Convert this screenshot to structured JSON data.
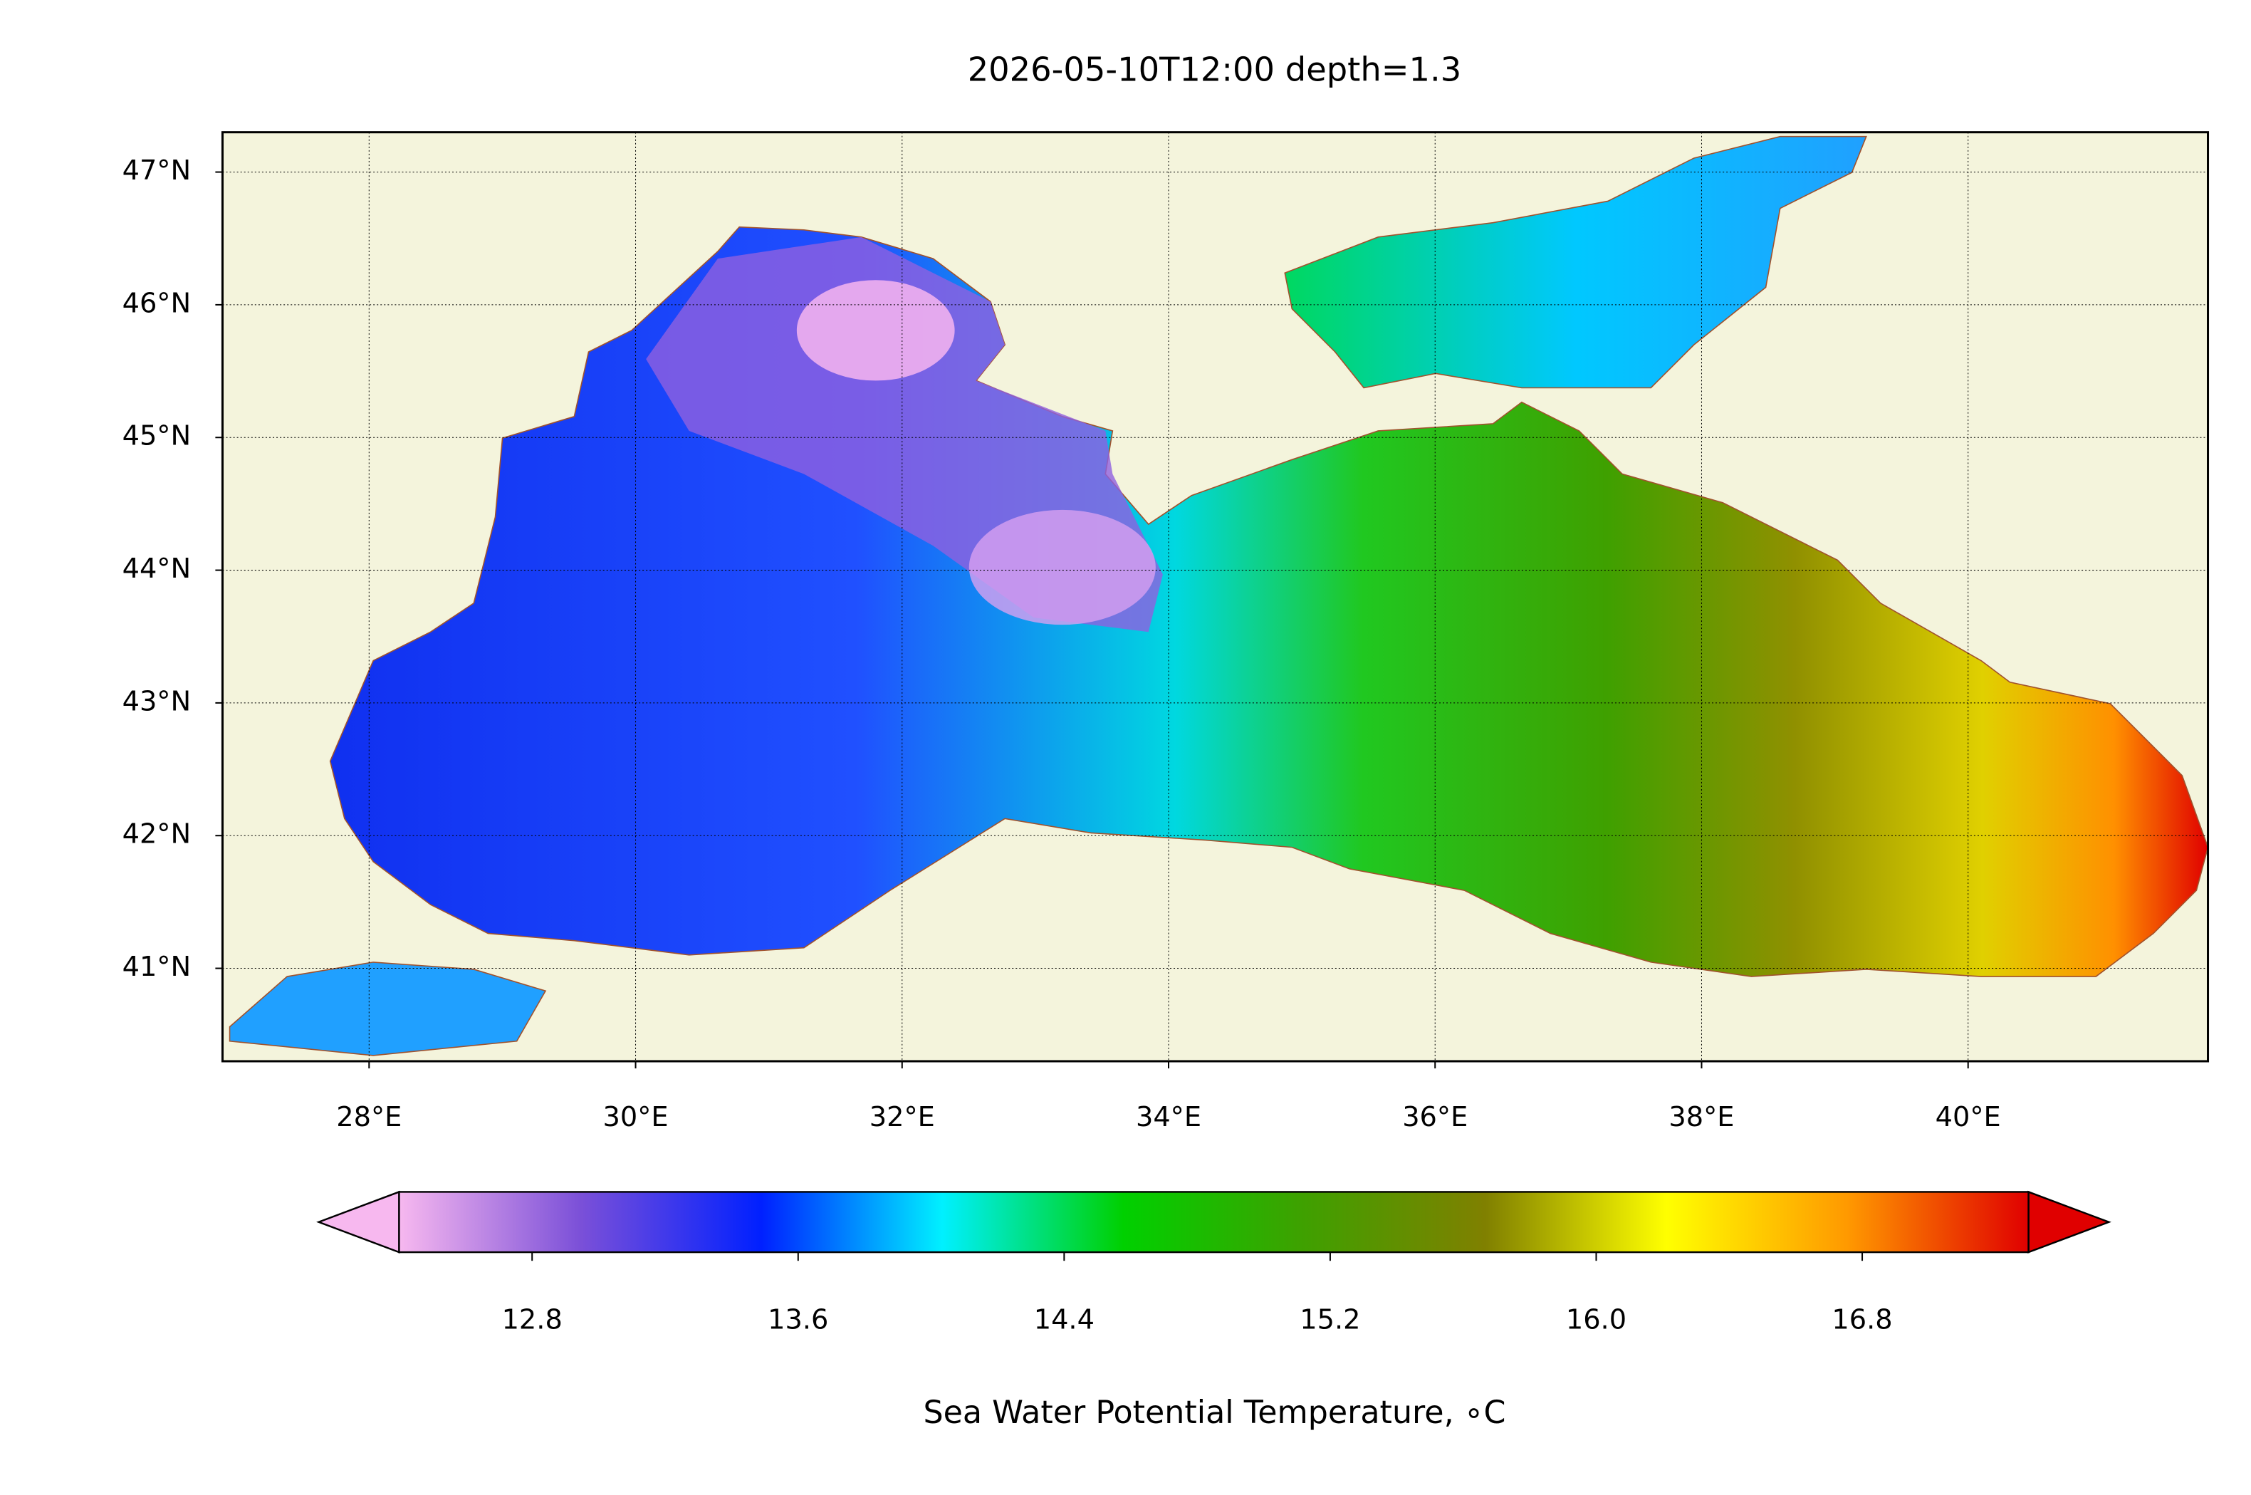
{
  "chart_data": {
    "type": "map",
    "title": "2026-05-10T12:00 depth=1.3",
    "xlim": [
      26.9,
      41.8
    ],
    "ylim": [
      40.3,
      47.3
    ],
    "xticks": [
      {
        "value": 28,
        "label": "28°E"
      },
      {
        "value": 30,
        "label": "30°E"
      },
      {
        "value": 32,
        "label": "32°E"
      },
      {
        "value": 34,
        "label": "34°E"
      },
      {
        "value": 36,
        "label": "36°E"
      },
      {
        "value": 38,
        "label": "38°E"
      },
      {
        "value": 40,
        "label": "40°E"
      }
    ],
    "yticks": [
      {
        "value": 41,
        "label": "41°N"
      },
      {
        "value": 42,
        "label": "42°N"
      },
      {
        "value": 43,
        "label": "43°N"
      },
      {
        "value": 44,
        "label": "44°N"
      },
      {
        "value": 45,
        "label": "45°N"
      },
      {
        "value": 46,
        "label": "46°N"
      },
      {
        "value": 47,
        "label": "47°N"
      }
    ],
    "grid": true,
    "colorbar": {
      "label": "Sea Water Potential Temperature, ∘C",
      "lim": [
        12.4,
        17.3
      ],
      "ticks": [
        12.8,
        13.6,
        14.4,
        {
          "value": 15.2,
          "label": "15.2"
        },
        {
          "value": 16.0,
          "label": "16.0"
        },
        16.8
      ],
      "colors": [
        "#f7b8ef",
        "#7b50d8",
        "#0020ff",
        "#00f0ff",
        "#00d000",
        "#3fa000",
        "#808000",
        "#ffff00",
        "#ff9900",
        "#e00000"
      ]
    }
  }
}
